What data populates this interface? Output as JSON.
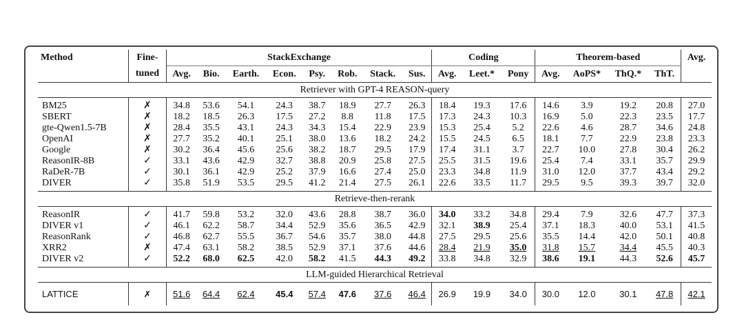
{
  "header": {
    "groups": [
      "Method",
      "Fine-",
      "StackExchange",
      "Coding",
      "Theorem-based",
      "Avg."
    ],
    "columns": [
      "tuned",
      "Avg.",
      "Bio.",
      "Earth.",
      "Econ.",
      "Psy.",
      "Rob.",
      "Stack.",
      "Sus.",
      "Avg.",
      "Leet.*",
      "Pony",
      "Avg.",
      "AoPS*",
      "ThQ.*",
      "ThT."
    ]
  },
  "sections": [
    {
      "title": "Retriever with GPT-4 REASON-query",
      "rows": [
        [
          "BM25",
          "✗",
          "34.8",
          "53.6",
          "54.1",
          "24.3",
          "38.7",
          "18.9",
          "27.7",
          "26.3",
          "18.4",
          "19.3",
          "17.6",
          "14.6",
          "3.9",
          "19.2",
          "20.8",
          "27.0"
        ],
        [
          "SBERT",
          "✗",
          "18.2",
          "18.5",
          "26.3",
          "17.5",
          "27.2",
          "8.8",
          "11.8",
          "17.5",
          "17.3",
          "24.3",
          "10.3",
          "16.9",
          "5.0",
          "22.3",
          "23.5",
          "17.7"
        ],
        [
          "gte-Qwen1.5-7B",
          "✗",
          "28.4",
          "35.5",
          "43.1",
          "24.3",
          "34.3",
          "15.4",
          "22.9",
          "23.9",
          "15.3",
          "25.4",
          "5.2",
          "22.6",
          "4.6",
          "28.7",
          "34.6",
          "24.8"
        ],
        [
          "OpenAI",
          "✗",
          "27.7",
          "35.2",
          "40.1",
          "25.1",
          "38.0",
          "13.6",
          "18.2",
          "24.2",
          "15.5",
          "24.5",
          "6.5",
          "18.1",
          "7.7",
          "22.9",
          "23.8",
          "23.3"
        ],
        [
          "Google",
          "✗",
          "30.2",
          "36.4",
          "45.6",
          "25.6",
          "38.2",
          "18.7",
          "29.5",
          "17.9",
          "17.4",
          "31.1",
          "3.7",
          "22.7",
          "10.0",
          "27.8",
          "30.4",
          "26.2"
        ],
        [
          "ReasonIR-8B",
          "✓",
          "33.1",
          "43.6",
          "42.9",
          "32.7",
          "38.8",
          "20.9",
          "25.8",
          "27.5",
          "25.5",
          "31.5",
          "19.6",
          "25.4",
          "7.4",
          "33.1",
          "35.7",
          "29.9"
        ],
        [
          "RaDeR-7B",
          "✓",
          "30.1",
          "36.1",
          "42.9",
          "25.2",
          "37.9",
          "16.6",
          "27.4",
          "25.0",
          "23.3",
          "34.8",
          "11.9",
          "31.0",
          "12.0",
          "37.7",
          "43.4",
          "29.2"
        ],
        [
          "DIVER",
          "✓",
          "35.8",
          "51.9",
          "53.5",
          "29.5",
          "41.2",
          "21.4",
          "27.5",
          "26.1",
          "22.6",
          "33.5",
          "11.7",
          "29.5",
          "9.5",
          "39.3",
          "39.7",
          "32.0"
        ]
      ]
    },
    {
      "title": "Retrieve-then-rerank",
      "rows": [
        [
          "ReasonIR",
          "✓",
          "41.7",
          "59.8",
          "53.2",
          "32.0",
          "43.6",
          "28.8",
          "38.7",
          "36.0",
          "34.0",
          "33.2",
          "34.8",
          "29.4",
          "7.9",
          "32.6",
          "47.7",
          "37.3"
        ],
        [
          "DIVER v1",
          "✓",
          "46.1",
          "62.2",
          "58.7",
          "34.4",
          "52.9",
          "35.6",
          "36.5",
          "42.9",
          "32.1",
          "38.9",
          "25.4",
          "37.1",
          "18.3",
          "40.0",
          "53.1",
          "41.5"
        ],
        [
          "ReasonRank",
          "✓",
          "46.8",
          "62.7",
          "55.5",
          "36.7",
          "54.6",
          "35.7",
          "38.0",
          "44.8",
          "27.5",
          "29.5",
          "25.6",
          "35.5",
          "14.4",
          "42.0",
          "50.1",
          "40.8"
        ],
        [
          "XRR2",
          "✗",
          "47.4",
          "63.1",
          "58.2",
          "38.5",
          "52.9",
          "37.1",
          "37.6",
          "44.6",
          "28.4",
          "21.9",
          "35.0",
          "31.8",
          "15.7",
          "34.4",
          "45.5",
          "40.3"
        ],
        [
          "DIVER v2",
          "✓",
          "52.2",
          "68.0",
          "62.5",
          "42.0",
          "58.2",
          "41.5",
          "44.3",
          "49.2",
          "33.8",
          "34.8",
          "32.9",
          "38.6",
          "19.1",
          "44.3",
          "52.6",
          "45.7"
        ]
      ]
    },
    {
      "title": "LLM-guided Hierarchical Retrieval",
      "rows": [
        [
          "LATTICE",
          "✗",
          "51.6",
          "64.4",
          "62.4",
          "45.4",
          "57.4",
          "47.6",
          "37.6",
          "46.4",
          "26.9",
          "19.9",
          "34.0",
          "30.0",
          "12.0",
          "30.1",
          "47.8",
          "42.1"
        ]
      ]
    }
  ]
}
